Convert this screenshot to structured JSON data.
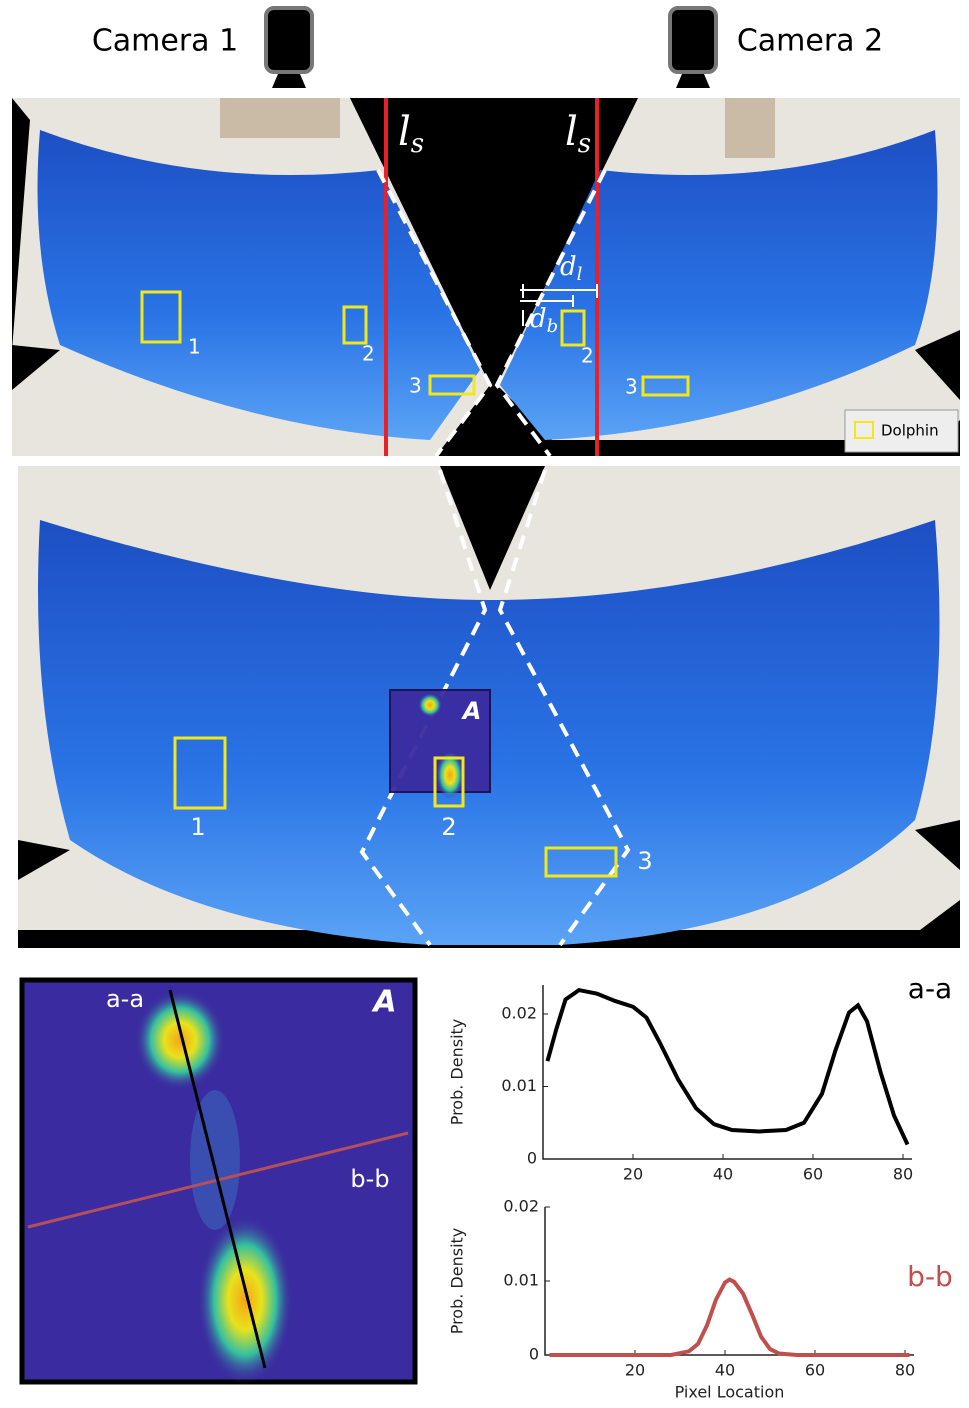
{
  "figure": {
    "cameras": [
      "Camera 1",
      "Camera 2"
    ],
    "split_line": {
      "main": "l",
      "sub": "s"
    },
    "distance_l": {
      "main": "d",
      "sub": "l"
    },
    "distance_b": {
      "main": "d",
      "sub": "b"
    },
    "dolphin_ids": [
      "1",
      "2",
      "3"
    ],
    "legend": "Dolphin",
    "inset_label": "A",
    "profile_labels": [
      "a-a",
      "b-b"
    ]
  },
  "chart_data": [
    {
      "type": "line",
      "ylabel": "Prob. Density",
      "x": [
        1,
        3,
        5,
        8,
        12,
        16,
        20,
        23,
        26,
        30,
        34,
        38,
        42,
        48,
        54,
        58,
        62,
        65,
        68,
        70,
        72,
        75,
        78,
        81
      ],
      "series": [
        {
          "name": "a-a",
          "color": "#000000",
          "values": [
            0.0135,
            0.018,
            0.022,
            0.0233,
            0.0228,
            0.0218,
            0.021,
            0.0195,
            0.016,
            0.011,
            0.007,
            0.0048,
            0.004,
            0.0038,
            0.004,
            0.005,
            0.009,
            0.015,
            0.0202,
            0.0212,
            0.019,
            0.012,
            0.006,
            0.002
          ]
        }
      ],
      "xlim": [
        0,
        82
      ],
      "ylim": [
        0,
        0.024
      ],
      "xticks": [
        20,
        40,
        60,
        80
      ],
      "yticks": [
        0,
        0.01,
        0.02
      ]
    },
    {
      "type": "line",
      "ylabel": "Prob. Density",
      "xlabel": "Pixel Location",
      "x": [
        1,
        28,
        32,
        34,
        36,
        38,
        40,
        41,
        42,
        44,
        46,
        48,
        50,
        52,
        56,
        81
      ],
      "series": [
        {
          "name": "b-b",
          "color": "#c0504d",
          "values": [
            0,
            0,
            0.0005,
            0.0015,
            0.004,
            0.0075,
            0.0098,
            0.0102,
            0.0099,
            0.0083,
            0.0055,
            0.0025,
            0.0008,
            0.0002,
            0,
            0
          ]
        }
      ],
      "xlim": [
        0,
        82
      ],
      "ylim": [
        0,
        0.02
      ],
      "xticks": [
        20,
        40,
        60,
        80
      ],
      "yticks": [
        0,
        0.01,
        0.02
      ]
    }
  ]
}
